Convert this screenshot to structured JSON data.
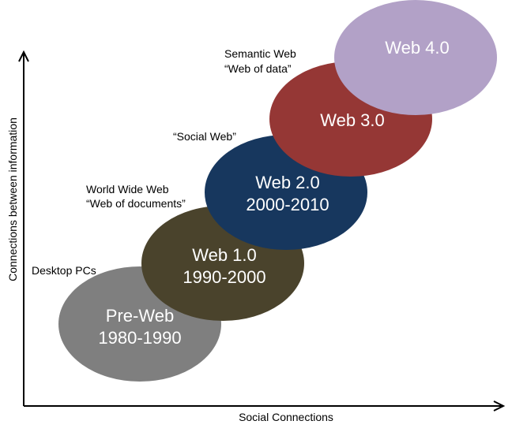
{
  "axes": {
    "x_label": "Social Connections",
    "y_label": "Connections between information"
  },
  "stages": [
    {
      "title": "Pre-Web",
      "years": "1980-1990",
      "color": "#7f7f7f",
      "note": [
        "Desktop PCs"
      ]
    },
    {
      "title": "Web 1.0",
      "years": "1990-2000",
      "color": "#4a432c",
      "note": [
        "World Wide Web",
        "“Web of documents”"
      ]
    },
    {
      "title": "Web 2.0",
      "years": "2000-2010",
      "color": "#17375e",
      "note": [
        "“Social Web”"
      ]
    },
    {
      "title": "Web 3.0",
      "years": "",
      "color": "#953735",
      "note": [
        "Semantic Web",
        "“Web of data”"
      ]
    },
    {
      "title": "Web 4.0",
      "years": "",
      "color": "#b2a1c7",
      "note": []
    }
  ]
}
